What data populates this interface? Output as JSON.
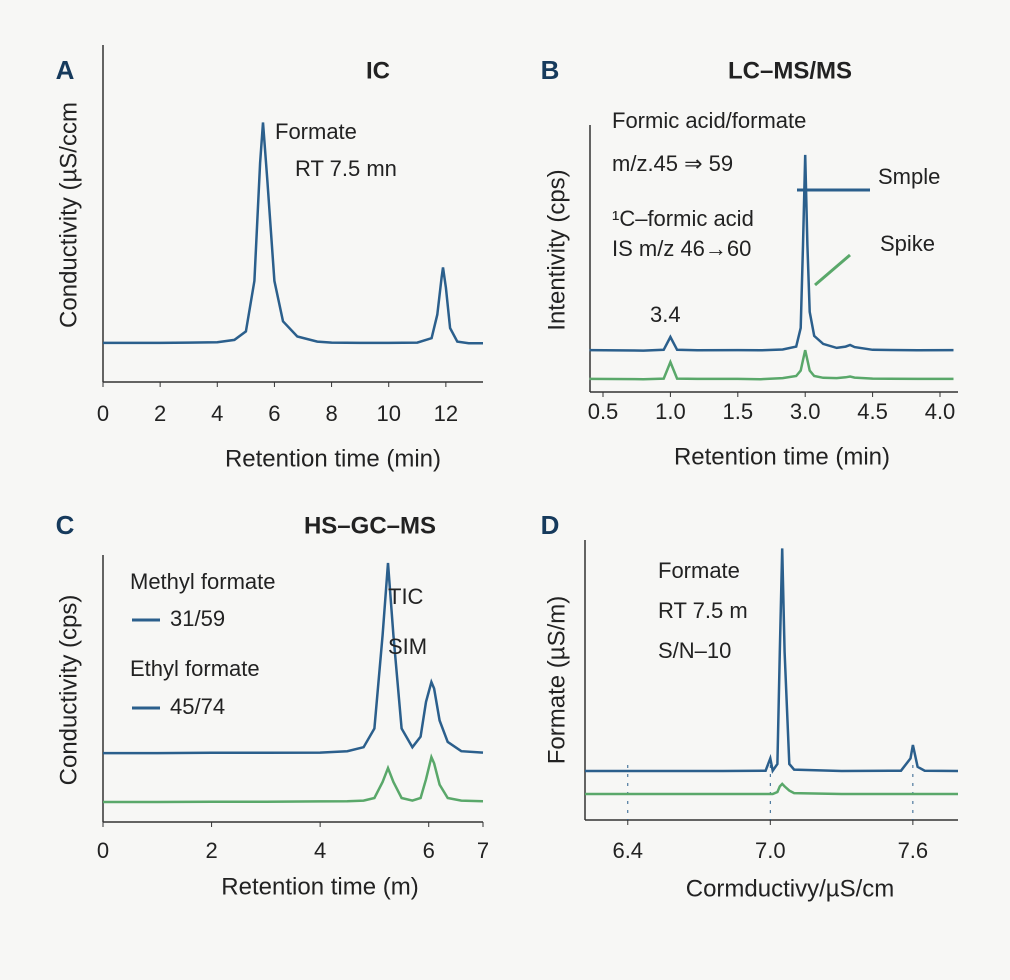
{
  "chart_data": [
    {
      "type": "line",
      "label": "A",
      "title": "IC",
      "xlabel": "Retention time (min)",
      "ylabel": "Conductivity (µS/ccm",
      "annotations": [
        "Formate",
        "RT 7.5 mn"
      ],
      "x": [
        0,
        1,
        2,
        3,
        4,
        4.6,
        5.0,
        5.3,
        5.5,
        5.6,
        5.75,
        6.0,
        6.3,
        6.8,
        7.5,
        8,
        9,
        10,
        11,
        11.5,
        11.7,
        11.85,
        11.9,
        12.0,
        12.15,
        12.4,
        12.8,
        13.3
      ],
      "series": [
        {
          "color": "#2b5f8c",
          "values": [
            11.6,
            11.6,
            11.6,
            11.7,
            11.8,
            12.5,
            15,
            30,
            65,
            77,
            60,
            30,
            18,
            13.5,
            12,
            11.7,
            11.6,
            11.6,
            11.7,
            13,
            20,
            31,
            34,
            28,
            16,
            12,
            11.5,
            11.5
          ]
        }
      ],
      "xlim": [
        0,
        13.3
      ],
      "ylim": [
        0,
        100
      ],
      "xticks": [
        0,
        2,
        4,
        6,
        8,
        10,
        12
      ]
    },
    {
      "type": "line",
      "label": "B",
      "title": "LC–MS/MS",
      "xlabel": "Retention time (min)",
      "ylabel": "Intentivity (cps)",
      "annotations": [
        "Formic acid/formate",
        "m/z.45 ⇒ 59",
        "¹C–formic acid",
        "IS  m/z 46→60",
        "3.4"
      ],
      "x": [
        0.4,
        0.8,
        0.95,
        1.0,
        1.05,
        1.2,
        1.5,
        2.0,
        2.5,
        2.8,
        2.9,
        2.95,
        3.0,
        3.05,
        3.1,
        3.2,
        3.4,
        3.7,
        3.9,
        4.0,
        4.1,
        4.5,
        5.5,
        6.3
      ],
      "series": [
        {
          "name": "Smple",
          "color": "#2b5f8c",
          "values": [
            15.7,
            15.5,
            15.8,
            20.6,
            15.8,
            15.6,
            15.7,
            15.6,
            15.9,
            17,
            24,
            55,
            88.8,
            55,
            30,
            21,
            18,
            16.5,
            17,
            17.6,
            16.8,
            15.8,
            15.6,
            15.7
          ]
        },
        {
          "name": "Spike",
          "color": "#5aa86a",
          "values": [
            4.9,
            4.8,
            5,
            11.2,
            5,
            4.9,
            4.9,
            4.8,
            5.2,
            6,
            8,
            12,
            15.7,
            12,
            8,
            6,
            5.3,
            5.2,
            5.5,
            5.8,
            5.4,
            5,
            4.9,
            4.9
          ]
        }
      ],
      "ylim": [
        0,
        100
      ],
      "xticks": [
        0.5,
        {
          "value": 1,
          "label": "1.0"
        },
        1.5,
        {
          "value": 3,
          "label": "3.0"
        },
        4.5,
        {
          "value": 4,
          "label": "4.0"
        }
      ]
    },
    {
      "type": "line",
      "label": "C",
      "title": "HS–GC–MS",
      "xlabel": "Retention time (m)",
      "ylabel": "Conductivity (cps)",
      "annotations": [
        "Methyl formate",
        "31/59",
        "Ethyl formate",
        "45/74"
      ],
      "x": [
        0,
        1,
        2,
        3,
        4,
        4.5,
        4.8,
        5.0,
        5.15,
        5.25,
        5.35,
        5.5,
        5.7,
        5.85,
        5.95,
        6.05,
        6.1,
        6.2,
        6.35,
        6.6,
        7
      ],
      "series": [
        {
          "name": "TIC",
          "color": "#2b5f8c",
          "values": [
            25.8,
            25.8,
            25.9,
            25.9,
            26,
            26.5,
            28,
            35,
            70,
            97,
            70,
            35,
            28,
            32,
            45,
            52.4,
            50,
            38,
            30,
            26.5,
            26
          ]
        },
        {
          "name": "SIM",
          "color": "#5aa86a",
          "values": [
            7.5,
            7.5,
            7.6,
            7.6,
            7.7,
            7.8,
            8,
            9,
            15,
            20.2,
            15,
            9,
            8,
            9,
            16,
            24.3,
            22,
            14,
            9,
            8,
            7.8
          ]
        }
      ],
      "xlim": [
        0,
        7
      ],
      "ylim": [
        0,
        100
      ],
      "xticks": [
        0,
        2,
        4,
        6,
        7
      ]
    },
    {
      "type": "line",
      "label": "D",
      "xlabel": "Cormductivy/µS/cm",
      "ylabel": "Formate (µS/m)",
      "annotations": [
        "Formate",
        "RT 7.5 m",
        "S/N–10"
      ],
      "x": [
        6.22,
        6.4,
        6.8,
        6.98,
        7.0,
        7.01,
        7.03,
        7.04,
        7.05,
        7.06,
        7.08,
        7.1,
        7.3,
        7.55,
        7.59,
        7.6,
        7.62,
        7.65,
        7.79
      ],
      "series": [
        {
          "color": "#2b5f8c",
          "values": [
            17.5,
            17.5,
            17.5,
            17.6,
            22,
            17.6,
            20,
            60,
            97,
            60,
            20,
            18,
            17.5,
            17.6,
            22,
            26.8,
            19,
            17.6,
            17.5
          ]
        },
        {
          "color": "#5aa86a",
          "values": [
            9.3,
            9.3,
            9.3,
            9.3,
            9.3,
            9.3,
            10,
            12,
            12.9,
            12,
            10.5,
            9.6,
            9.3,
            9.3,
            9.3,
            9.3,
            9.3,
            9.3,
            9.3
          ]
        }
      ],
      "xlim": [
        6.22,
        7.79
      ],
      "ylim": [
        0,
        100
      ],
      "xticks": [
        6.4,
        {
          "value": 7,
          "label": "7.0"
        },
        7.6
      ],
      "grid": true
    }
  ]
}
